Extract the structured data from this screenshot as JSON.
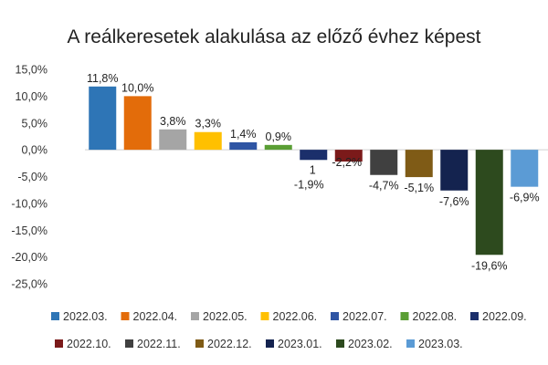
{
  "chart_data": {
    "type": "bar",
    "title": "A reálkeresetek alakulása az előző évhez képest",
    "categories": [
      "2022.03.",
      "2022.04.",
      "2022.05.",
      "2022.06.",
      "2022.07.",
      "2022.08.",
      "2022.09.",
      "2022.10.",
      "2022.11.",
      "2022.12.",
      "2023.01.",
      "2023.02.",
      "2023.03."
    ],
    "values": [
      11.8,
      10.0,
      3.8,
      3.3,
      1.4,
      0.9,
      -1.9,
      -2.2,
      -4.7,
      -5.1,
      -7.6,
      -19.6,
      -6.9
    ],
    "data_labels": [
      "11,8%",
      "10,0%",
      "3,8%",
      "3,3%",
      "1,4%",
      "0,9%",
      "-1,9%",
      "-2,2%",
      "-4,7%",
      "-5,1%",
      "-7,6%",
      "-19,6%",
      "-6,9%"
    ],
    "colors": [
      "#2E75B6",
      "#E36C0A",
      "#A5A5A5",
      "#FFC000",
      "#2F55A4",
      "#5A9E34",
      "#1B2F6B",
      "#7B1A1A",
      "#404040",
      "#7F5B16",
      "#14234F",
      "#2D4A1E",
      "#5B9BD5"
    ],
    "ylim": [
      -25,
      15
    ],
    "yticks": [
      15,
      10,
      5,
      0,
      -5,
      -10,
      -15,
      -20,
      -25
    ],
    "ytick_labels": [
      "15,0%",
      "10,0%",
      "5,0%",
      "0,0%",
      "-5,0%",
      "-10,0%",
      "-15,0%",
      "-20,0%",
      "-25,0%"
    ],
    "annotations": [
      {
        "text": "1",
        "category": "2022.09."
      }
    ],
    "grid": false,
    "legend_position": "bottom"
  }
}
